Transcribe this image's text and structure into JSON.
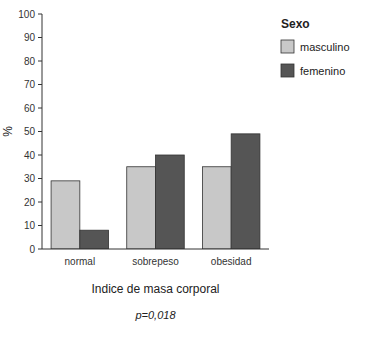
{
  "chart_data": {
    "type": "bar",
    "categories": [
      "normal",
      "sobrepeso",
      "obesidad"
    ],
    "series": [
      {
        "name": "masculino",
        "color": "#c8c8c8",
        "values": [
          29,
          35,
          35
        ]
      },
      {
        "name": "femenino",
        "color": "#555555",
        "values": [
          8,
          40,
          49
        ]
      }
    ],
    "xlabel": "Indice de masa corporal",
    "ylabel": "%",
    "legend_title": "Sexo",
    "annotations": [
      "p=0,018"
    ],
    "ylim": [
      0,
      100
    ],
    "yticks": [
      0,
      10,
      20,
      30,
      40,
      50,
      60,
      70,
      80,
      90,
      100
    ],
    "legend": "right",
    "grid": false
  }
}
